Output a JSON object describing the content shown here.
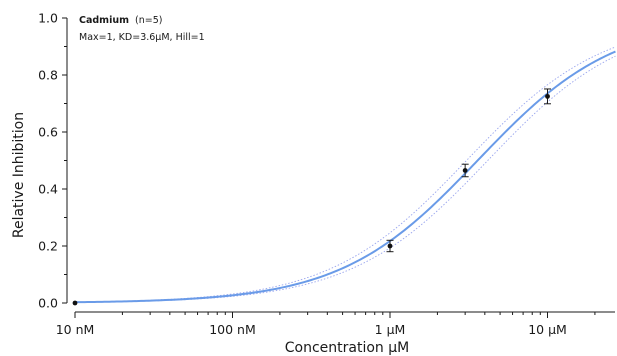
{
  "chart_data": {
    "type": "scatter",
    "title": "",
    "xlabel": "Concentration μM",
    "ylabel": "Relative Inhibition",
    "x_scale": "log",
    "x_unit": "μM",
    "xlim": [
      0.01,
      27
    ],
    "ylim": [
      0,
      1.0
    ],
    "x_ticks": [
      {
        "value": 0.01,
        "label": "10 nM"
      },
      {
        "value": 0.1,
        "label": "100 nM"
      },
      {
        "value": 1,
        "label": "1 μM"
      },
      {
        "value": 10,
        "label": "10 μM"
      }
    ],
    "y_ticks": [
      {
        "value": 0.0,
        "label": "0.0"
      },
      {
        "value": 0.2,
        "label": "0.2"
      },
      {
        "value": 0.4,
        "label": "0.4"
      },
      {
        "value": 0.6,
        "label": "0.6"
      },
      {
        "value": 0.8,
        "label": "0.8"
      },
      {
        "value": 1.0,
        "label": "1.0"
      }
    ],
    "annotation": {
      "name": "Cadmium",
      "n": "(n=5)",
      "params": "Max=1, KD=3.6μM, Hill=1"
    },
    "fit": {
      "model": "hill",
      "max": 1,
      "kd": 3.6,
      "hill": 1,
      "color": "#6a9be8",
      "band_color": "#9aa6ee"
    },
    "points": [
      {
        "x": 0.01,
        "y": 0.0,
        "err": 0.0
      },
      {
        "x": 1,
        "y": 0.2,
        "err": 0.02
      },
      {
        "x": 3,
        "y": 0.465,
        "err": 0.022
      },
      {
        "x": 10,
        "y": 0.725,
        "err": 0.026
      }
    ],
    "grid": false,
    "legend": "none"
  }
}
